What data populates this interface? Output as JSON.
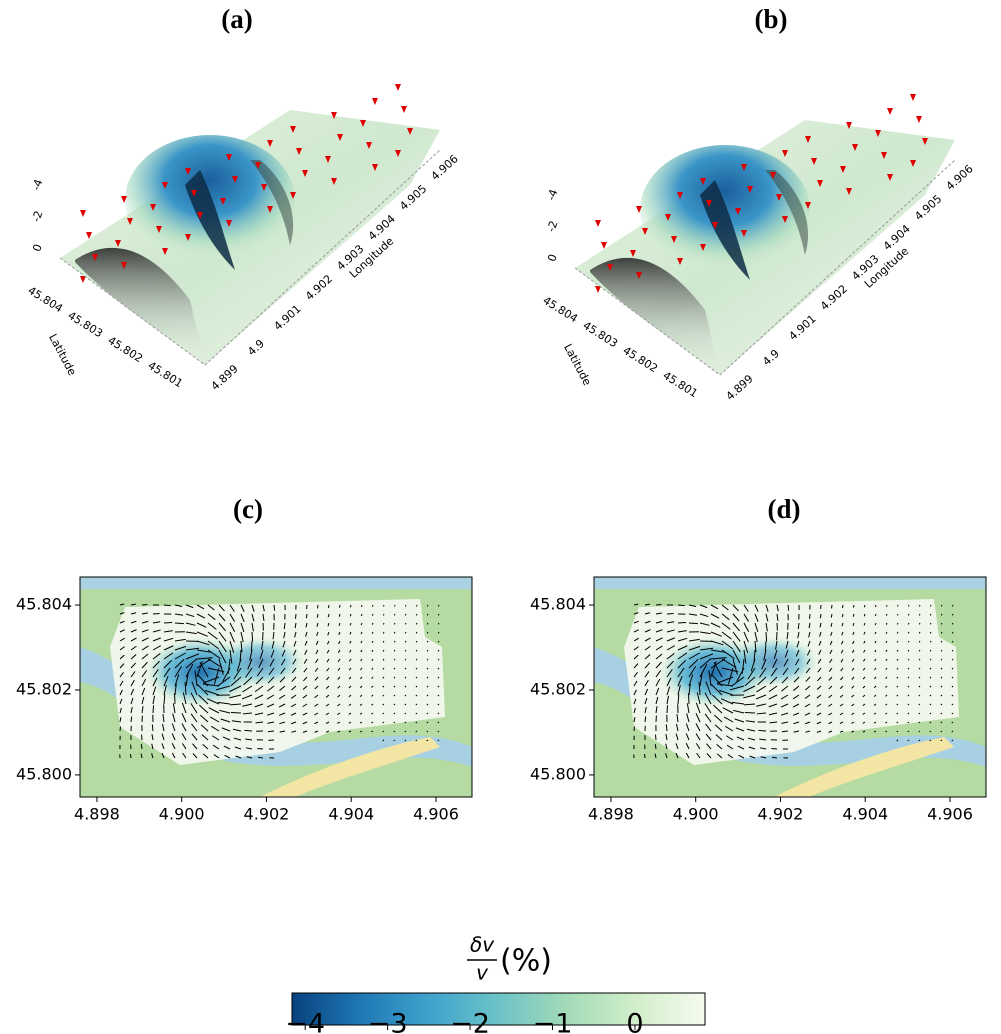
{
  "chart_data": [
    {
      "type": "surface3d",
      "title": "(a)",
      "xlabel": "Longitude",
      "ylabel": "Latitude",
      "xticks": [
        4.899,
        4.9,
        4.901,
        4.902,
        4.903,
        4.904,
        4.905,
        4.906
      ],
      "yticks": [
        45.804,
        45.803,
        45.802,
        45.801
      ],
      "zticks": [
        -4,
        -2,
        0
      ]
    },
    {
      "type": "surface3d",
      "title": "(b)",
      "xlabel": "Longitude",
      "ylabel": "Latitude",
      "xticks": [
        4.899,
        4.9,
        4.901,
        4.902,
        4.903,
        4.904,
        4.905,
        4.906
      ],
      "yticks": [
        45.804,
        45.803,
        45.802,
        45.801
      ],
      "zticks": [
        -4,
        -2,
        0
      ]
    },
    {
      "type": "map",
      "title": "(c)",
      "xlim": [
        4.8976,
        4.90685
      ],
      "ylim": [
        45.79948,
        45.80466
      ],
      "xticks": [
        4.898,
        {
          "value": 4.9,
          "label": "4.900"
        },
        4.902,
        4.904,
        4.906
      ],
      "yticks": [
        {
          "value": 45.8,
          "label": "45.800"
        },
        45.802,
        45.804
      ]
    },
    {
      "type": "map",
      "title": "(d)",
      "xlim": [
        4.8976,
        4.90685
      ],
      "ylim": [
        45.79948,
        45.80466
      ],
      "xticks": [
        4.898,
        {
          "value": 4.9,
          "label": "4.900"
        },
        4.902,
        4.904,
        4.906
      ],
      "yticks": [
        {
          "value": 45.8,
          "label": "45.800"
        },
        45.802,
        45.804
      ]
    },
    {
      "type": "colorbar",
      "label_numerator": "δv",
      "label_denominator": "v",
      "label_unit": "(%)",
      "xlim": [
        -4.16,
        0.85
      ],
      "xticks": [
        {
          "value": -4,
          "label": "−4"
        },
        {
          "value": -3,
          "label": "−3"
        },
        {
          "value": -2,
          "label": "−2"
        },
        {
          "value": -1,
          "label": "−1"
        },
        0
      ],
      "colors": [
        "#08427f",
        "#1f78b4",
        "#3fa3cc",
        "#6cc3c8",
        "#a3dbb7",
        "#d2eecb",
        "#f6fbef"
      ]
    }
  ]
}
